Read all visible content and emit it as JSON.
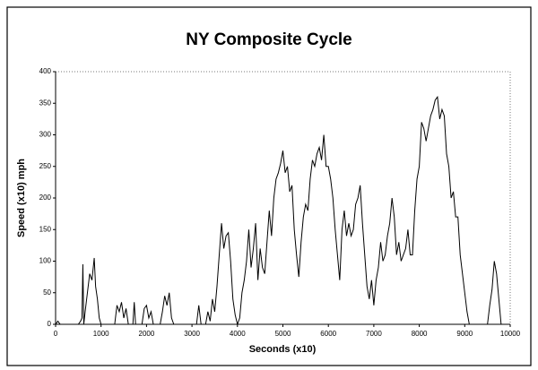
{
  "chart_data": {
    "type": "line",
    "title": "NY Composite Cycle",
    "xlabel": "Seconds (x10)",
    "ylabel": "Speed (x10) mph",
    "x": [
      0,
      50,
      100,
      500,
      550,
      580,
      600,
      620,
      650,
      700,
      750,
      800,
      850,
      880,
      920,
      960,
      1000,
      1300,
      1350,
      1400,
      1450,
      1500,
      1550,
      1600,
      1700,
      1730,
      1760,
      1900,
      1950,
      2000,
      2050,
      2100,
      2150,
      2300,
      2350,
      2400,
      2450,
      2500,
      2550,
      2600,
      3100,
      3150,
      3200,
      3300,
      3350,
      3400,
      3450,
      3500,
      3550,
      3600,
      3650,
      3700,
      3750,
      3800,
      3850,
      3900,
      3950,
      4000,
      4050,
      4100,
      4150,
      4200,
      4250,
      4300,
      4350,
      4400,
      4450,
      4500,
      4550,
      4600,
      4650,
      4700,
      4750,
      4800,
      4850,
      4900,
      4950,
      5000,
      5050,
      5100,
      5150,
      5200,
      5250,
      5300,
      5350,
      5400,
      5450,
      5500,
      5550,
      5600,
      5650,
      5700,
      5750,
      5800,
      5850,
      5900,
      5950,
      6000,
      6050,
      6100,
      6150,
      6200,
      6250,
      6300,
      6350,
      6400,
      6450,
      6500,
      6550,
      6600,
      6650,
      6700,
      6750,
      6800,
      6850,
      6900,
      6950,
      7000,
      7050,
      7100,
      7150,
      7200,
      7250,
      7300,
      7350,
      7400,
      7450,
      7500,
      7550,
      7600,
      7650,
      7700,
      7750,
      7800,
      7850,
      7900,
      7950,
      8000,
      8050,
      8100,
      8150,
      8200,
      8250,
      8300,
      8350,
      8400,
      8450,
      8500,
      8550,
      8600,
      8650,
      8700,
      8750,
      8800,
      8850,
      8900,
      8950,
      9000,
      9050,
      9100,
      9500,
      9550,
      9600,
      9650,
      9700,
      9750,
      9800
    ],
    "values": [
      0,
      5,
      0,
      0,
      5,
      10,
      95,
      0,
      20,
      50,
      80,
      70,
      105,
      60,
      40,
      10,
      0,
      0,
      30,
      20,
      35,
      10,
      25,
      0,
      0,
      35,
      0,
      0,
      25,
      30,
      10,
      20,
      0,
      0,
      20,
      45,
      30,
      50,
      10,
      0,
      0,
      30,
      0,
      0,
      20,
      5,
      40,
      20,
      60,
      110,
      160,
      120,
      140,
      145,
      100,
      40,
      15,
      0,
      10,
      50,
      70,
      100,
      150,
      90,
      120,
      160,
      70,
      120,
      90,
      80,
      130,
      180,
      140,
      200,
      230,
      240,
      255,
      275,
      240,
      250,
      210,
      220,
      150,
      110,
      75,
      130,
      170,
      190,
      180,
      230,
      260,
      250,
      270,
      280,
      260,
      300,
      250,
      250,
      230,
      200,
      150,
      110,
      70,
      150,
      180,
      140,
      160,
      140,
      150,
      190,
      200,
      220,
      160,
      110,
      60,
      40,
      70,
      30,
      70,
      90,
      130,
      100,
      110,
      140,
      160,
      200,
      170,
      110,
      130,
      100,
      110,
      120,
      150,
      110,
      110,
      180,
      230,
      250,
      320,
      310,
      290,
      310,
      330,
      340,
      355,
      360,
      325,
      340,
      330,
      270,
      250,
      200,
      210,
      170,
      170,
      110,
      80,
      50,
      20,
      0,
      0,
      30,
      55,
      100,
      80,
      40,
      0
    ],
    "color": "#000000",
    "xlim": [
      0,
      10000
    ],
    "xticks": [
      0,
      1000,
      2000,
      3000,
      4000,
      5000,
      6000,
      7000,
      8000,
      9000,
      10000
    ],
    "ylim": [
      0,
      400
    ],
    "yticks": [
      0,
      50,
      100,
      150,
      200,
      250,
      300,
      350,
      400
    ]
  }
}
